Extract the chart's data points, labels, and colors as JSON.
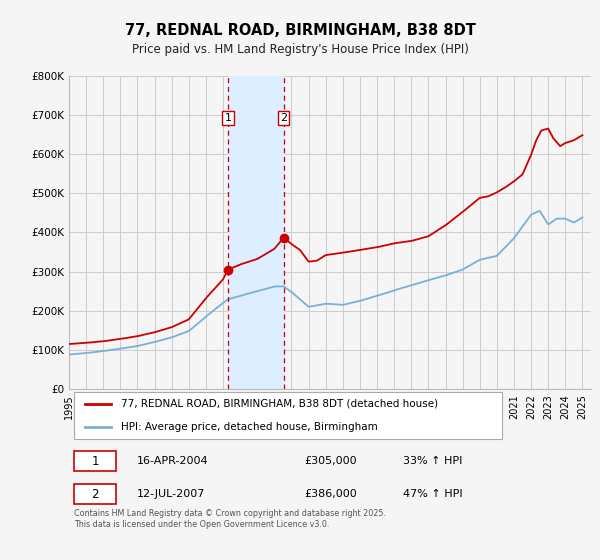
{
  "title": "77, REDNAL ROAD, BIRMINGHAM, B38 8DT",
  "subtitle": "Price paid vs. HM Land Registry's House Price Index (HPI)",
  "footer": "Contains HM Land Registry data © Crown copyright and database right 2025.\nThis data is licensed under the Open Government Licence v3.0.",
  "legend_line1": "77, REDNAL ROAD, BIRMINGHAM, B38 8DT (detached house)",
  "legend_line2": "HPI: Average price, detached house, Birmingham",
  "transaction1_label": "1",
  "transaction1_date": "16-APR-2004",
  "transaction1_price": "£305,000",
  "transaction1_hpi": "33% ↑ HPI",
  "transaction1_year": 2004.29,
  "transaction1_value": 305000,
  "transaction2_label": "2",
  "transaction2_date": "12-JUL-2007",
  "transaction2_price": "£386,000",
  "transaction2_hpi": "47% ↑ HPI",
  "transaction2_year": 2007.54,
  "transaction2_value": 386000,
  "red_color": "#cc0000",
  "blue_color": "#7ab0d4",
  "shading_color": "#dceeff",
  "background_color": "#f5f5f5",
  "grid_color": "#cccccc",
  "ylim": [
    0,
    800000
  ],
  "yticks": [
    0,
    100000,
    200000,
    300000,
    400000,
    500000,
    600000,
    700000,
    800000
  ],
  "ytick_labels": [
    "£0",
    "£100K",
    "£200K",
    "£300K",
    "£400K",
    "£500K",
    "£600K",
    "£700K",
    "£800K"
  ],
  "xlim_start": 1995,
  "xlim_end": 2025.5
}
